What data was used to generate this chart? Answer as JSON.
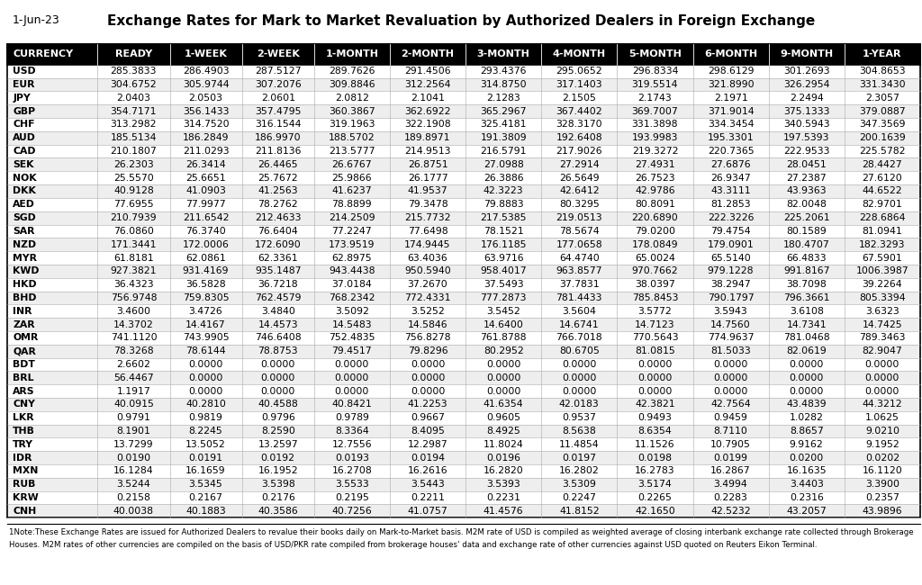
{
  "title": "Exchange Rates for Mark to Market Revaluation by Authorized Dealers in Foreign Exchange",
  "date": "1-Jun-23",
  "columns": [
    "CURRENCY",
    "READY",
    "1-WEEK",
    "2-WEEK",
    "1-MONTH",
    "2-MONTH",
    "3-MONTH",
    "4-MONTH",
    "5-MONTH",
    "6-MONTH",
    "9-MONTH",
    "1-YEAR"
  ],
  "rows": [
    [
      "USD",
      "285.3833",
      "286.4903",
      "287.5127",
      "289.7626",
      "291.4506",
      "293.4376",
      "295.0652",
      "296.8334",
      "298.6129",
      "301.2693",
      "304.8653"
    ],
    [
      "EUR",
      "304.6752",
      "305.9744",
      "307.2076",
      "309.8846",
      "312.2564",
      "314.8750",
      "317.1403",
      "319.5514",
      "321.8990",
      "326.2954",
      "331.3430"
    ],
    [
      "JPY",
      "2.0403",
      "2.0503",
      "2.0601",
      "2.0812",
      "2.1041",
      "2.1283",
      "2.1505",
      "2.1743",
      "2.1971",
      "2.2494",
      "2.3057"
    ],
    [
      "GBP",
      "354.7171",
      "356.1433",
      "357.4795",
      "360.3867",
      "362.6922",
      "365.2967",
      "367.4402",
      "369.7007",
      "371.9014",
      "375.1333",
      "379.0887"
    ],
    [
      "CHF",
      "313.2982",
      "314.7520",
      "316.1544",
      "319.1963",
      "322.1908",
      "325.4181",
      "328.3170",
      "331.3898",
      "334.3454",
      "340.5943",
      "347.3569"
    ],
    [
      "AUD",
      "185.5134",
      "186.2849",
      "186.9970",
      "188.5702",
      "189.8971",
      "191.3809",
      "192.6408",
      "193.9983",
      "195.3301",
      "197.5393",
      "200.1639"
    ],
    [
      "CAD",
      "210.1807",
      "211.0293",
      "211.8136",
      "213.5777",
      "214.9513",
      "216.5791",
      "217.9026",
      "219.3272",
      "220.7365",
      "222.9533",
      "225.5782"
    ],
    [
      "SEK",
      "26.2303",
      "26.3414",
      "26.4465",
      "26.6767",
      "26.8751",
      "27.0988",
      "27.2914",
      "27.4931",
      "27.6876",
      "28.0451",
      "28.4427"
    ],
    [
      "NOK",
      "25.5570",
      "25.6651",
      "25.7672",
      "25.9866",
      "26.1777",
      "26.3886",
      "26.5649",
      "26.7523",
      "26.9347",
      "27.2387",
      "27.6120"
    ],
    [
      "DKK",
      "40.9128",
      "41.0903",
      "41.2563",
      "41.6237",
      "41.9537",
      "42.3223",
      "42.6412",
      "42.9786",
      "43.3111",
      "43.9363",
      "44.6522"
    ],
    [
      "AED",
      "77.6955",
      "77.9977",
      "78.2762",
      "78.8899",
      "79.3478",
      "79.8883",
      "80.3295",
      "80.8091",
      "81.2853",
      "82.0048",
      "82.9701"
    ],
    [
      "SGD",
      "210.7939",
      "211.6542",
      "212.4633",
      "214.2509",
      "215.7732",
      "217.5385",
      "219.0513",
      "220.6890",
      "222.3226",
      "225.2061",
      "228.6864"
    ],
    [
      "SAR",
      "76.0860",
      "76.3740",
      "76.6404",
      "77.2247",
      "77.6498",
      "78.1521",
      "78.5674",
      "79.0200",
      "79.4754",
      "80.1589",
      "81.0941"
    ],
    [
      "NZD",
      "171.3441",
      "172.0006",
      "172.6090",
      "173.9519",
      "174.9445",
      "176.1185",
      "177.0658",
      "178.0849",
      "179.0901",
      "180.4707",
      "182.3293"
    ],
    [
      "MYR",
      "61.8181",
      "62.0861",
      "62.3361",
      "62.8975",
      "63.4036",
      "63.9716",
      "64.4740",
      "65.0024",
      "65.5140",
      "66.4833",
      "67.5901"
    ],
    [
      "KWD",
      "927.3821",
      "931.4169",
      "935.1487",
      "943.4438",
      "950.5940",
      "958.4017",
      "963.8577",
      "970.7662",
      "979.1228",
      "991.8167",
      "1006.3987"
    ],
    [
      "HKD",
      "36.4323",
      "36.5828",
      "36.7218",
      "37.0184",
      "37.2670",
      "37.5493",
      "37.7831",
      "38.0397",
      "38.2947",
      "38.7098",
      "39.2264"
    ],
    [
      "BHD",
      "756.9748",
      "759.8305",
      "762.4579",
      "768.2342",
      "772.4331",
      "777.2873",
      "781.4433",
      "785.8453",
      "790.1797",
      "796.3661",
      "805.3394"
    ],
    [
      "INR",
      "3.4600",
      "3.4726",
      "3.4840",
      "3.5092",
      "3.5252",
      "3.5452",
      "3.5604",
      "3.5772",
      "3.5943",
      "3.6108",
      "3.6323"
    ],
    [
      "ZAR",
      "14.3702",
      "14.4167",
      "14.4573",
      "14.5483",
      "14.5846",
      "14.6400",
      "14.6741",
      "14.7123",
      "14.7560",
      "14.7341",
      "14.7425"
    ],
    [
      "OMR",
      "741.1120",
      "743.9905",
      "746.6408",
      "752.4835",
      "756.8278",
      "761.8788",
      "766.7018",
      "770.5643",
      "774.9637",
      "781.0468",
      "789.3463"
    ],
    [
      "QAR",
      "78.3268",
      "78.6144",
      "78.8753",
      "79.4517",
      "79.8296",
      "80.2952",
      "80.6705",
      "81.0815",
      "81.5033",
      "82.0619",
      "82.9047"
    ],
    [
      "BDT",
      "2.6602",
      "0.0000",
      "0.0000",
      "0.0000",
      "0.0000",
      "0.0000",
      "0.0000",
      "0.0000",
      "0.0000",
      "0.0000",
      "0.0000"
    ],
    [
      "BRL",
      "56.4467",
      "0.0000",
      "0.0000",
      "0.0000",
      "0.0000",
      "0.0000",
      "0.0000",
      "0.0000",
      "0.0000",
      "0.0000",
      "0.0000"
    ],
    [
      "ARS",
      "1.1917",
      "0.0000",
      "0.0000",
      "0.0000",
      "0.0000",
      "0.0000",
      "0.0000",
      "0.0000",
      "0.0000",
      "0.0000",
      "0.0000"
    ],
    [
      "CNY",
      "40.0915",
      "40.2810",
      "40.4588",
      "40.8421",
      "41.2253",
      "41.6354",
      "42.0183",
      "42.3821",
      "42.7564",
      "43.4839",
      "44.3212"
    ],
    [
      "LKR",
      "0.9791",
      "0.9819",
      "0.9796",
      "0.9789",
      "0.9667",
      "0.9605",
      "0.9537",
      "0.9493",
      "0.9459",
      "1.0282",
      "1.0625"
    ],
    [
      "THB",
      "8.1901",
      "8.2245",
      "8.2590",
      "8.3364",
      "8.4095",
      "8.4925",
      "8.5638",
      "8.6354",
      "8.7110",
      "8.8657",
      "9.0210"
    ],
    [
      "TRY",
      "13.7299",
      "13.5052",
      "13.2597",
      "12.7556",
      "12.2987",
      "11.8024",
      "11.4854",
      "11.1526",
      "10.7905",
      "9.9162",
      "9.1952"
    ],
    [
      "IDR",
      "0.0190",
      "0.0191",
      "0.0192",
      "0.0193",
      "0.0194",
      "0.0196",
      "0.0197",
      "0.0198",
      "0.0199",
      "0.0200",
      "0.0202"
    ],
    [
      "MXN",
      "16.1284",
      "16.1659",
      "16.1952",
      "16.2708",
      "16.2616",
      "16.2820",
      "16.2802",
      "16.2783",
      "16.2867",
      "16.1635",
      "16.1120"
    ],
    [
      "RUB",
      "3.5244",
      "3.5345",
      "3.5398",
      "3.5533",
      "3.5443",
      "3.5393",
      "3.5309",
      "3.5174",
      "3.4994",
      "3.4403",
      "3.3900"
    ],
    [
      "KRW",
      "0.2158",
      "0.2167",
      "0.2176",
      "0.2195",
      "0.2211",
      "0.2231",
      "0.2247",
      "0.2265",
      "0.2283",
      "0.2316",
      "0.2357"
    ],
    [
      "CNH",
      "40.0038",
      "40.1883",
      "40.3586",
      "40.7256",
      "41.0757",
      "41.4576",
      "41.8152",
      "42.1650",
      "42.5232",
      "43.2057",
      "43.9896"
    ]
  ],
  "note_superscript": "1",
  "note_body": "Note:These Exchange Rates are issued for Authorized Dealers to revalue their books daily on Mark-to-Market basis. M2M rate of USD is compiled as weighted average of closing interbank exchange rate collected through Brokerage Houses. M2M rates of other currencies are compiled on the basis of USD/PKR rate compiled from brokerage houses' data and exchange rate of other currencies against USD quoted on Reuters Eikon Terminal.",
  "header_bg": "#000000",
  "header_text": "#ffffff",
  "row_bg_even": "#ffffff",
  "row_bg_odd": "#eeeeee",
  "border_color": "#000000",
  "col_border_color": "#aaaaaa",
  "title_fontsize": 11,
  "header_fontsize": 8,
  "cell_fontsize": 7.8,
  "note_fontsize": 6.2,
  "col_widths_rel": [
    1.25,
    1.0,
    1.0,
    1.0,
    1.05,
    1.05,
    1.05,
    1.05,
    1.05,
    1.05,
    1.05,
    1.05
  ]
}
